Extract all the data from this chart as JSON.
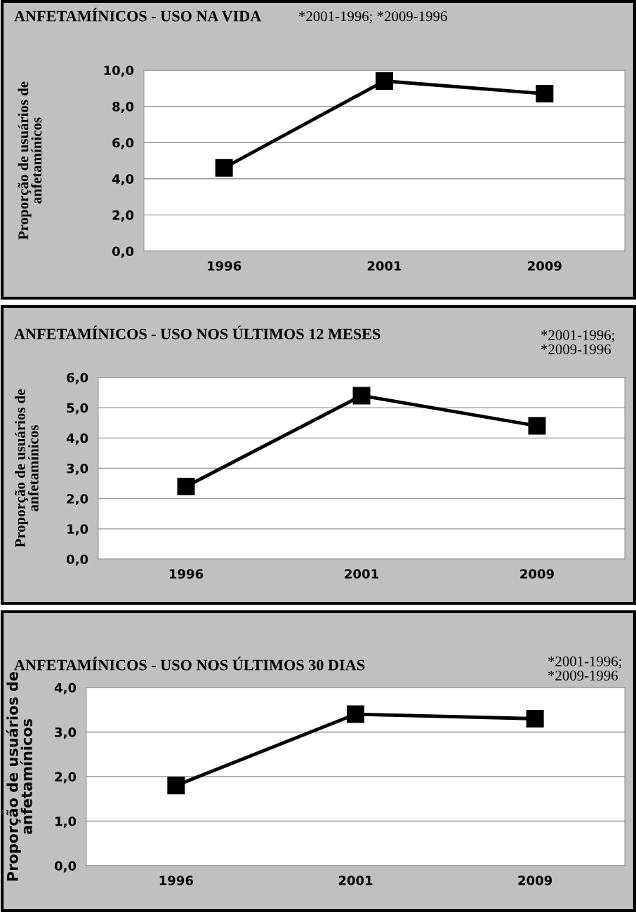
{
  "chart_data": [
    {
      "type": "line",
      "title": "ANFETAMÍNICOS - USO NA VIDA",
      "annotations": [
        "*2001-1996; *2009-1996"
      ],
      "ylabel": "Proporção de usuários de\nanfetamínicos",
      "categories": [
        "1996",
        "2001",
        "2009"
      ],
      "series": [
        {
          "color": "#000000",
          "values": [
            4.6,
            9.4,
            8.7
          ]
        }
      ],
      "ylim": [
        0,
        10
      ],
      "yticks": [
        {
          "value": 0,
          "label": "0,0"
        },
        {
          "value": 2,
          "label": "2,0"
        },
        {
          "value": 4,
          "label": "4,0"
        },
        {
          "value": 6,
          "label": "6,0"
        },
        {
          "value": 8,
          "label": "8,0"
        },
        {
          "value": 10,
          "label": "10,0"
        }
      ],
      "grid": "y",
      "legend": false,
      "marker": "square",
      "line_style": "solid"
    },
    {
      "type": "line",
      "title": "ANFETAMÍNICOS - USO NOS ÚLTIMOS 12 MESES",
      "annotations": [
        "*2001-1996;\n*2009-1996"
      ],
      "ylabel": "Proporção de usuários de\nanfetamínicos",
      "categories": [
        "1996",
        "2001",
        "2009"
      ],
      "series": [
        {
          "color": "#000000",
          "values": [
            2.4,
            5.4,
            4.4
          ]
        }
      ],
      "ylim": [
        0,
        6
      ],
      "yticks": [
        {
          "value": 0,
          "label": "0,0"
        },
        {
          "value": 1,
          "label": "1,0"
        },
        {
          "value": 2,
          "label": "2,0"
        },
        {
          "value": 3,
          "label": "3,0"
        },
        {
          "value": 4,
          "label": "4,0"
        },
        {
          "value": 5,
          "label": "5,0"
        },
        {
          "value": 6,
          "label": "6,0"
        }
      ],
      "grid": "y",
      "legend": false,
      "marker": "square",
      "line_style": "solid"
    },
    {
      "type": "line",
      "title": "ANFETAMÍNICOS - USO NOS ÚLTIMOS 30 DIAS",
      "annotations": [
        "*2001-1996;\n*2009-1996"
      ],
      "ylabel": "Proporção de usuários de\nanfetamínicos",
      "categories": [
        "1996",
        "2001",
        "2009"
      ],
      "series": [
        {
          "color": "#000000",
          "values": [
            1.8,
            3.4,
            3.3
          ]
        }
      ],
      "ylim": [
        0,
        4
      ],
      "yticks": [
        {
          "value": 0,
          "label": "0,0"
        },
        {
          "value": 1,
          "label": "1,0"
        },
        {
          "value": 2,
          "label": "2,0"
        },
        {
          "value": 3,
          "label": "3,0"
        },
        {
          "value": 4,
          "label": "4,0"
        }
      ],
      "grid": "y",
      "legend": false,
      "marker": "square",
      "line_style": "solid"
    }
  ]
}
